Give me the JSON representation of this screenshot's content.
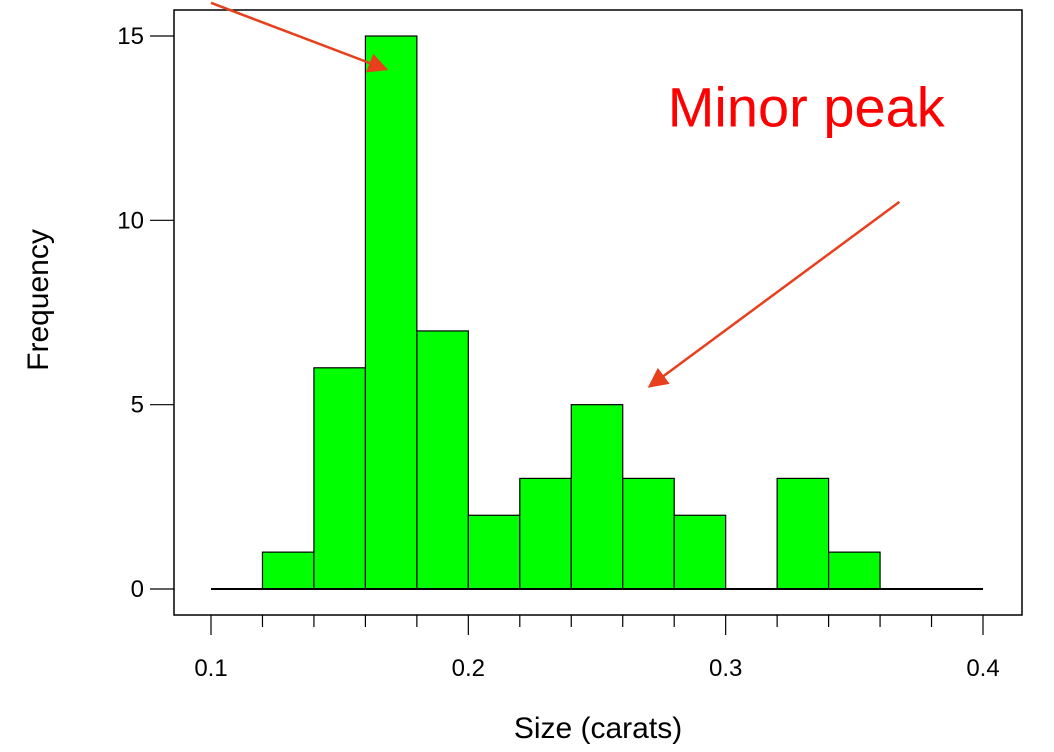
{
  "chart_data": {
    "type": "bar",
    "title": "",
    "xlabel": "Size (carats)",
    "ylabel": "Frequency",
    "bin_edges": [
      0.12,
      0.14,
      0.16,
      0.18,
      0.2,
      0.22,
      0.24,
      0.26,
      0.28,
      0.3,
      0.32,
      0.34,
      0.36
    ],
    "values": [
      1,
      6,
      15,
      7,
      2,
      3,
      5,
      3,
      2,
      0,
      3,
      1
    ],
    "xlim": [
      0.1,
      0.4
    ],
    "ylim": [
      0,
      15
    ],
    "x_ticks": [
      0.1,
      0.2,
      0.3,
      0.4
    ],
    "x_tick_labels": [
      "0.1",
      "0.2",
      "0.3",
      "0.4"
    ],
    "x_minor_step": 0.02,
    "y_ticks": [
      0,
      5,
      10,
      15
    ],
    "y_tick_labels": [
      "0",
      "5",
      "10",
      "15"
    ],
    "y_minor_step": 1,
    "grid": false,
    "colors": {
      "bar_fill": "#00ff00",
      "bar_edge": "#000000",
      "annotation": "#ff0000",
      "arrow": "#e8401c"
    },
    "annotations": [
      {
        "text": "",
        "arrow_from": [
          0.1,
          15.9
        ],
        "arrow_to": [
          0.168,
          14.1
        ]
      },
      {
        "text": "Minor peak",
        "anchor_x": 0.2775,
        "anchor_y": 12.55,
        "arrow_from": [
          0.3675,
          10.5
        ],
        "arrow_to": [
          0.2705,
          5.5
        ]
      }
    ]
  }
}
